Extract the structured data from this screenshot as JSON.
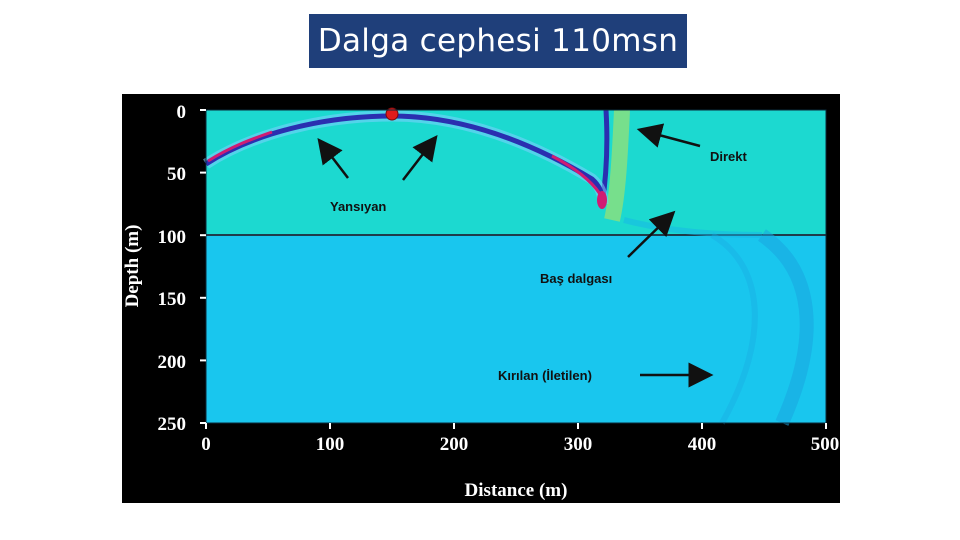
{
  "slide": {
    "title": "Dalga cephesi 110msn"
  },
  "figure": {
    "x_axis_label": "Distance (m)",
    "y_axis_label": "Depth (m)",
    "x_ticks": [
      "0",
      "100",
      "200",
      "300",
      "400",
      "500"
    ],
    "y_ticks": [
      "0",
      "50",
      "100",
      "150",
      "200",
      "250"
    ],
    "annotations": {
      "direct": "Direkt",
      "reflected": "Yansıyan",
      "head_wave": "Baş dalgası",
      "refracted": "Kırılan (İletilen)"
    },
    "colors": {
      "upper_layer": "#1cd9d0",
      "lower_layer": "#19c6ee",
      "wavefront_dark": "#2a2fb0",
      "wavefront_hot": "#d01b73",
      "source": "#e01b1b"
    }
  }
}
